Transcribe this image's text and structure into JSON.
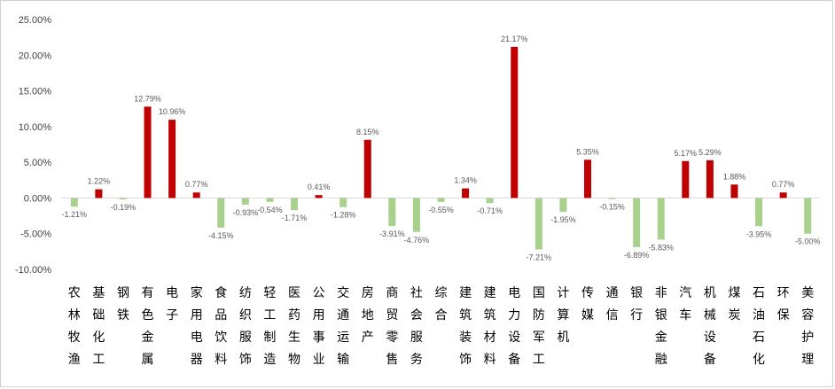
{
  "chart_data": {
    "type": "bar",
    "ylim": [
      -10,
      25
    ],
    "yticks": [
      -10,
      -5,
      0,
      5,
      10,
      15,
      20,
      25
    ],
    "ytick_labels": [
      "-10.00%",
      "-5.00%",
      "0.00%",
      "5.00%",
      "10.00%",
      "15.00%",
      "20.00%",
      "25.00%"
    ],
    "grid": false,
    "legend": "none",
    "colors": {
      "positive": "#c00000",
      "negative": "#a9d18e"
    },
    "categories": [
      "农林牧渔",
      "基础化工",
      "钢铁",
      "有色金属",
      "电子",
      "家用电器",
      "食品饮料",
      "纺织服饰",
      "轻工制造",
      "医药生物",
      "公用事业",
      "交通运输",
      "房地产",
      "商贸零售",
      "社会服务",
      "综合",
      "建筑装饰",
      "建筑材料",
      "电力设备",
      "国防军工",
      "计算机",
      "传媒",
      "通信",
      "银行",
      "非银金融",
      "汽车",
      "机械设备",
      "煤炭",
      "石油石化",
      "环保",
      "美容护理"
    ],
    "values": [
      -1.21,
      1.22,
      -0.19,
      12.79,
      10.96,
      0.77,
      -4.15,
      -0.93,
      -0.54,
      -1.71,
      0.41,
      -1.28,
      8.15,
      -3.91,
      -4.76,
      -0.55,
      1.34,
      -0.71,
      21.17,
      -7.21,
      -1.95,
      5.35,
      -0.15,
      -6.89,
      -5.83,
      5.17,
      5.29,
      1.88,
      -3.95,
      0.77,
      -5.0
    ],
    "value_labels": [
      "-1.21%",
      "1.22%",
      "-0.19%",
      "12.79%",
      "10.96%",
      "0.77%",
      "-4.15%",
      "-0.93%",
      "-0.54%",
      "-1.71%",
      "0.41%",
      "-1.28%",
      "8.15%",
      "-3.91%",
      "-4.76%",
      "-0.55%",
      "1.34%",
      "-0.71%",
      "21.17%",
      "-7.21%",
      "-1.95%",
      "5.35%",
      "-0.15%",
      "-6.89%",
      "-5.83%",
      "5.17%",
      "5.29%",
      "1.88%",
      "-3.95%",
      "0.77%",
      "-5.00%"
    ]
  }
}
